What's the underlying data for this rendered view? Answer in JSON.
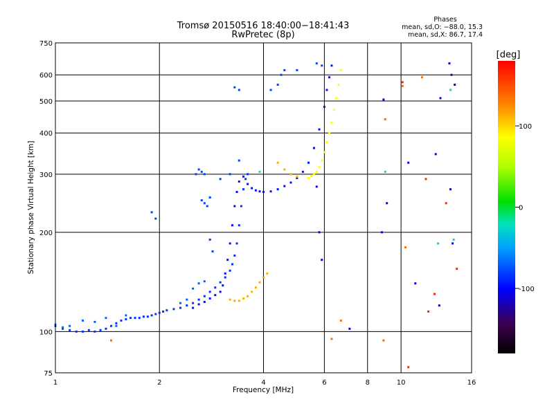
{
  "chart_data": {
    "type": "scatter",
    "title": "Tromsø 20150516 18:40:00−18:41:43",
    "subtitle": "RwPretec (8p)",
    "phase_stats": {
      "header": "Phases",
      "o_line": "mean, sd,O: −88.0, 15.3",
      "x_line": "mean, sd,X: 86.7, 17.4"
    },
    "xlabel": "Frequency [MHz]",
    "ylabel": "Stationary phase Virtual Height [km]",
    "x_scale": "log",
    "y_scale": "log",
    "xlim": [
      1,
      16
    ],
    "ylim": [
      75,
      750
    ],
    "x_ticks": [
      1,
      2,
      4,
      6,
      8,
      10,
      16
    ],
    "y_ticks": [
      75,
      100,
      200,
      300,
      400,
      500,
      600,
      750
    ],
    "grid": true,
    "colorbar": {
      "title": "[deg]",
      "range": [
        -180,
        180
      ],
      "ticks": [
        -100,
        0,
        100
      ]
    },
    "series": [
      {
        "phase": -85,
        "points": [
          [
            1.0,
            104
          ],
          [
            1.05,
            102
          ],
          [
            1.1,
            101
          ],
          [
            1.15,
            100
          ],
          [
            1.2,
            100
          ],
          [
            1.25,
            101
          ],
          [
            1.3,
            100
          ],
          [
            1.35,
            101
          ],
          [
            1.4,
            102
          ],
          [
            1.45,
            104
          ],
          [
            1.5,
            106
          ],
          [
            1.55,
            108
          ],
          [
            1.6,
            109
          ],
          [
            1.65,
            110
          ],
          [
            1.7,
            110
          ],
          [
            1.75,
            110
          ],
          [
            1.8,
            111
          ],
          [
            1.85,
            111
          ],
          [
            1.9,
            112
          ],
          [
            1.95,
            113
          ],
          [
            2.0,
            114
          ],
          [
            2.05,
            115
          ],
          [
            2.1,
            116
          ],
          [
            2.2,
            117
          ],
          [
            2.3,
            118
          ],
          [
            2.4,
            120
          ],
          [
            2.5,
            122
          ],
          [
            2.6,
            125
          ],
          [
            2.7,
            128
          ],
          [
            2.8,
            132
          ],
          [
            2.9,
            136
          ],
          [
            3.0,
            141
          ],
          [
            3.1,
            146
          ],
          [
            3.2,
            153
          ],
          [
            3.25,
            160
          ],
          [
            3.3,
            170
          ],
          [
            3.35,
            185
          ],
          [
            3.4,
            210
          ],
          [
            3.45,
            240
          ],
          [
            3.5,
            270
          ],
          [
            3.55,
            290
          ],
          [
            3.6,
            300
          ]
        ]
      },
      {
        "phase": -95,
        "points": [
          [
            2.5,
            118
          ],
          [
            2.6,
            121
          ],
          [
            2.7,
            123
          ],
          [
            2.8,
            126
          ],
          [
            2.9,
            129
          ],
          [
            3.0,
            132
          ],
          [
            3.05,
            138
          ],
          [
            3.1,
            150
          ],
          [
            3.15,
            165
          ],
          [
            3.2,
            185
          ],
          [
            3.25,
            210
          ],
          [
            3.3,
            240
          ],
          [
            3.35,
            265
          ],
          [
            3.4,
            285
          ],
          [
            3.5,
            295
          ],
          [
            3.6,
            280
          ],
          [
            3.7,
            272
          ],
          [
            3.8,
            268
          ],
          [
            3.9,
            266
          ],
          [
            4.0,
            265
          ],
          [
            4.2,
            266
          ],
          [
            4.4,
            270
          ],
          [
            4.6,
            276
          ],
          [
            4.8,
            283
          ],
          [
            5.0,
            292
          ],
          [
            5.2,
            305
          ],
          [
            5.4,
            325
          ],
          [
            5.6,
            360
          ],
          [
            5.8,
            410
          ],
          [
            6.0,
            480
          ],
          [
            6.1,
            540
          ],
          [
            6.2,
            590
          ],
          [
            6.3,
            640
          ]
        ]
      },
      {
        "phase": -80,
        "points": [
          [
            2.55,
            300
          ],
          [
            2.6,
            310
          ],
          [
            2.65,
            305
          ],
          [
            2.7,
            300
          ],
          [
            2.65,
            250
          ],
          [
            2.7,
            245
          ],
          [
            2.8,
            255
          ],
          [
            2.75,
            240
          ],
          [
            3.0,
            290
          ],
          [
            3.2,
            300
          ],
          [
            3.4,
            330
          ],
          [
            1.9,
            230
          ],
          [
            1.95,
            220
          ],
          [
            2.8,
            190
          ],
          [
            2.85,
            175
          ],
          [
            3.3,
            550
          ],
          [
            3.4,
            540
          ],
          [
            4.2,
            540
          ],
          [
            4.4,
            560
          ],
          [
            4.5,
            600
          ],
          [
            4.6,
            620
          ],
          [
            5.0,
            620
          ],
          [
            5.7,
            650
          ],
          [
            5.9,
            640
          ]
        ]
      },
      {
        "phase": -70,
        "points": [
          [
            1.0,
            105
          ],
          [
            1.05,
            103
          ],
          [
            1.1,
            104
          ],
          [
            1.2,
            108
          ],
          [
            1.3,
            107
          ],
          [
            1.4,
            110
          ],
          [
            1.5,
            104
          ],
          [
            1.6,
            112
          ],
          [
            2.3,
            122
          ],
          [
            2.4,
            125
          ],
          [
            2.5,
            135
          ],
          [
            2.6,
            140
          ],
          [
            2.7,
            142
          ]
        ]
      },
      {
        "phase": 100,
        "points": [
          [
            5.4,
            292
          ],
          [
            5.5,
            296
          ],
          [
            5.6,
            300
          ],
          [
            5.7,
            305
          ],
          [
            5.8,
            315
          ],
          [
            5.9,
            330
          ],
          [
            6.0,
            350
          ],
          [
            6.1,
            375
          ],
          [
            6.2,
            400
          ],
          [
            6.3,
            430
          ],
          [
            6.4,
            470
          ],
          [
            6.5,
            510
          ],
          [
            6.6,
            560
          ],
          [
            6.7,
            620
          ]
        ]
      },
      {
        "phase": 130,
        "points": [
          [
            3.2,
            125
          ],
          [
            3.3,
            124
          ],
          [
            3.4,
            124
          ],
          [
            3.5,
            126
          ],
          [
            3.6,
            128
          ],
          [
            3.7,
            132
          ],
          [
            3.8,
            136
          ],
          [
            3.9,
            141
          ],
          [
            4.0,
            146
          ],
          [
            4.1,
            150
          ],
          [
            4.4,
            325
          ],
          [
            4.6,
            310
          ],
          [
            4.8,
            300
          ],
          [
            5.0,
            295
          ]
        ]
      },
      {
        "phase": 150,
        "points": [
          [
            1.45,
            94
          ],
          [
            6.3,
            95
          ],
          [
            6.7,
            108
          ],
          [
            8.9,
            94
          ],
          [
            10.3,
            180
          ],
          [
            11.5,
            590
          ],
          [
            10.1,
            555
          ],
          [
            9.0,
            440
          ]
        ]
      },
      {
        "phase": -110,
        "points": [
          [
            7.1,
            102
          ],
          [
            8.9,
            505
          ],
          [
            8.8,
            200
          ],
          [
            9.1,
            245
          ],
          [
            10.5,
            325
          ],
          [
            11.0,
            140
          ],
          [
            12.6,
            345
          ],
          [
            13.0,
            510
          ],
          [
            13.8,
            650
          ],
          [
            14.0,
            600
          ],
          [
            14.3,
            560
          ],
          [
            13.9,
            270
          ],
          [
            14.1,
            185
          ],
          [
            12.9,
            120
          ],
          [
            5.9,
            165
          ],
          [
            5.8,
            200
          ],
          [
            5.7,
            275
          ]
        ]
      },
      {
        "phase": -20,
        "points": [
          [
            3.9,
            305
          ],
          [
            9.0,
            305
          ],
          [
            12.8,
            185
          ],
          [
            13.9,
            540
          ],
          [
            14.2,
            190
          ]
        ]
      },
      {
        "phase": 170,
        "points": [
          [
            10.1,
            570
          ],
          [
            11.8,
            290
          ],
          [
            13.5,
            245
          ],
          [
            14.5,
            155
          ],
          [
            12.0,
            115
          ],
          [
            12.5,
            130
          ],
          [
            10.5,
            78
          ]
        ]
      }
    ]
  }
}
